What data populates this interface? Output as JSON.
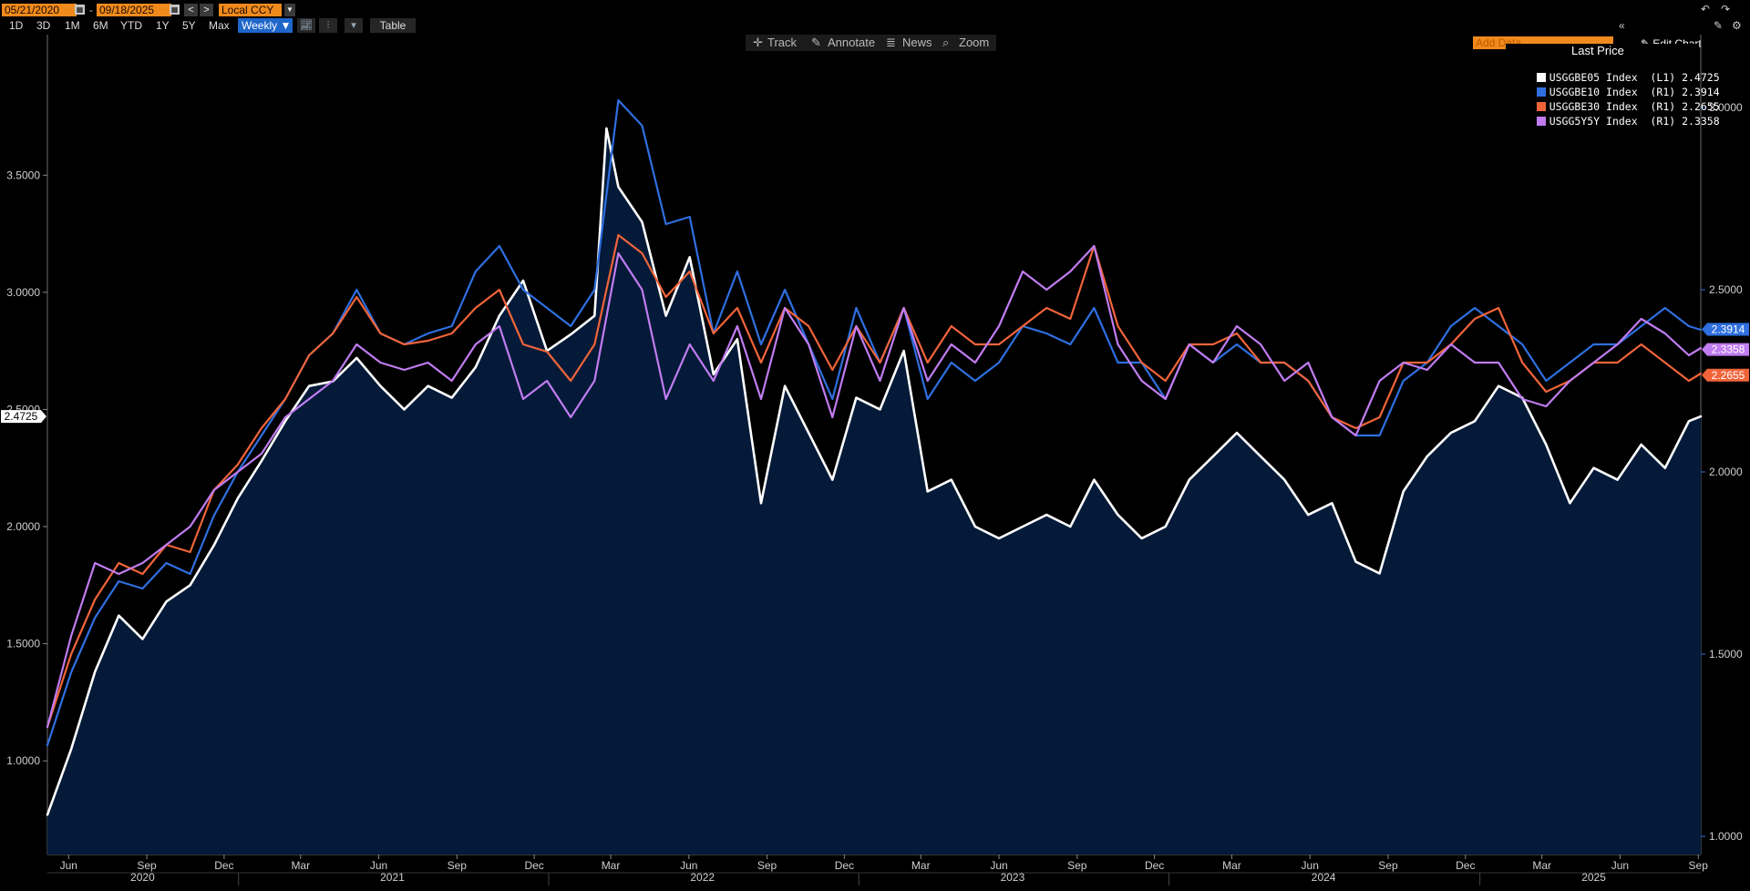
{
  "toolbar": {
    "start_date": "05/21/2020",
    "end_date": "09/18/2025",
    "date_separator": "-",
    "prev_label": "<",
    "next_label": ">",
    "currency": "Local CCY",
    "periods": [
      "1D",
      "3D",
      "1M",
      "6M",
      "YTD",
      "1Y",
      "5Y",
      "Max"
    ],
    "frequency": "Weekly ▼",
    "table_label": "Table",
    "add_data_placeholder": "Add Data",
    "collapse_label": "«",
    "edit_chart_label": "Edit Chart"
  },
  "chart_tools": {
    "track": "Track",
    "annotate": "Annotate",
    "news": "News",
    "zoom": "Zoom"
  },
  "legend": {
    "header": "Last Price",
    "items": [
      {
        "label": "USGGBE05 Index  (L1) 2.4725",
        "color": "#ffffff"
      },
      {
        "label": "USGGBE10 Index  (R1) 2.3914",
        "color": "#2f6fe0"
      },
      {
        "label": "USGGBE30 Index  (R1) 2.2655",
        "color": "#f0643a"
      },
      {
        "label": "USGG5Y5Y Index  (R1) 2.3358",
        "color": "#c07cf0"
      }
    ]
  },
  "chart_data": {
    "type": "line",
    "title": "",
    "xlabel": "",
    "ylabel": "",
    "x_range": [
      "2020-05-21",
      "2025-09-18"
    ],
    "x_month_ticks": [
      "Jun",
      "Sep",
      "Dec",
      "Mar",
      "Jun",
      "Sep",
      "Dec",
      "Mar",
      "Jun",
      "Sep",
      "Dec",
      "Mar",
      "Jun",
      "Sep",
      "Dec",
      "Mar",
      "Jun",
      "Sep",
      "Dec",
      "Mar",
      "Jun",
      "Sep"
    ],
    "x_month_tick_dates": [
      "2020-06-15",
      "2020-09-15",
      "2020-12-15",
      "2021-03-15",
      "2021-06-15",
      "2021-09-15",
      "2021-12-15",
      "2022-03-15",
      "2022-06-15",
      "2022-09-15",
      "2022-12-15",
      "2023-03-15",
      "2023-06-15",
      "2023-09-15",
      "2023-12-15",
      "2024-03-15",
      "2024-06-15",
      "2024-09-15",
      "2024-12-15",
      "2025-03-15",
      "2025-06-15",
      "2025-09-15"
    ],
    "x_year_labels": [
      "2020",
      "2021",
      "2022",
      "2023",
      "2024",
      "2025"
    ],
    "x_year_label_dates": [
      "2020-09-10",
      "2021-07-01",
      "2022-07-01",
      "2023-07-01",
      "2024-07-01",
      "2025-05-15"
    ],
    "left_axis": {
      "ticks": [
        "1.0000",
        "1.5000",
        "2.0000",
        "2.5000",
        "3.0000",
        "3.5000"
      ],
      "range": [
        0.6,
        4.1
      ],
      "last_value_label": "2.4725"
    },
    "right_axis": {
      "ticks": [
        "1.0000",
        "1.5000",
        "2.0000",
        "2.5000",
        "3.0000"
      ],
      "range": [
        0.95,
        3.2
      ],
      "last_value_labels": [
        "2.3914",
        "2.3358",
        "2.2655"
      ]
    },
    "series": [
      {
        "name": "USGGBE05 Index",
        "axis": "left",
        "color": "#ffffff",
        "filled": true,
        "fill_color": "#041a38",
        "x": [
          "2020-05-21",
          "2020-06-18",
          "2020-07-16",
          "2020-08-13",
          "2020-09-10",
          "2020-10-08",
          "2020-11-05",
          "2020-12-03",
          "2020-12-31",
          "2021-01-28",
          "2021-02-25",
          "2021-03-25",
          "2021-04-22",
          "2021-05-20",
          "2021-06-17",
          "2021-07-15",
          "2021-08-12",
          "2021-09-09",
          "2021-10-07",
          "2021-11-04",
          "2021-12-02",
          "2021-12-30",
          "2022-01-27",
          "2022-02-24",
          "2022-03-10",
          "2022-03-24",
          "2022-04-21",
          "2022-05-19",
          "2022-06-16",
          "2022-07-14",
          "2022-08-11",
          "2022-09-08",
          "2022-10-06",
          "2022-11-03",
          "2022-12-01",
          "2022-12-29",
          "2023-01-26",
          "2023-02-23",
          "2023-03-23",
          "2023-04-20",
          "2023-05-18",
          "2023-06-15",
          "2023-07-13",
          "2023-08-10",
          "2023-09-07",
          "2023-10-05",
          "2023-11-02",
          "2023-11-30",
          "2023-12-28",
          "2024-01-25",
          "2024-02-22",
          "2024-03-21",
          "2024-04-18",
          "2024-05-16",
          "2024-06-13",
          "2024-07-11",
          "2024-08-08",
          "2024-09-05",
          "2024-10-03",
          "2024-10-31",
          "2024-11-28",
          "2024-12-26",
          "2025-01-23",
          "2025-02-20",
          "2025-03-20",
          "2025-04-17",
          "2025-05-15",
          "2025-06-12",
          "2025-07-10",
          "2025-08-07",
          "2025-09-04",
          "2025-09-18"
        ],
        "values": [
          0.77,
          1.05,
          1.38,
          1.62,
          1.52,
          1.68,
          1.75,
          1.92,
          2.12,
          2.28,
          2.45,
          2.6,
          2.62,
          2.72,
          2.6,
          2.5,
          2.6,
          2.55,
          2.68,
          2.9,
          3.05,
          2.75,
          2.82,
          2.9,
          3.7,
          3.45,
          3.3,
          2.9,
          3.15,
          2.65,
          2.8,
          2.1,
          2.6,
          2.4,
          2.2,
          2.55,
          2.5,
          2.75,
          2.15,
          2.2,
          2.0,
          1.95,
          2.0,
          2.05,
          2.0,
          2.2,
          2.05,
          1.95,
          2.0,
          2.2,
          2.3,
          2.4,
          2.3,
          2.2,
          2.05,
          2.1,
          1.85,
          1.8,
          2.15,
          2.3,
          2.4,
          2.45,
          2.6,
          2.55,
          2.35,
          2.1,
          2.25,
          2.2,
          2.35,
          2.25,
          2.45,
          2.47
        ]
      },
      {
        "name": "USGGBE10 Index",
        "axis": "right",
        "color": "#2f6fe0",
        "x": [
          "2020-05-21",
          "2020-06-18",
          "2020-07-16",
          "2020-08-13",
          "2020-09-10",
          "2020-10-08",
          "2020-11-05",
          "2020-12-03",
          "2020-12-31",
          "2021-01-28",
          "2021-02-25",
          "2021-03-25",
          "2021-04-22",
          "2021-05-20",
          "2021-06-17",
          "2021-07-15",
          "2021-08-12",
          "2021-09-09",
          "2021-10-07",
          "2021-11-04",
          "2021-12-02",
          "2021-12-30",
          "2022-01-27",
          "2022-02-24",
          "2022-03-24",
          "2022-04-21",
          "2022-05-19",
          "2022-06-16",
          "2022-07-14",
          "2022-08-11",
          "2022-09-08",
          "2022-10-06",
          "2022-11-03",
          "2022-12-01",
          "2022-12-29",
          "2023-01-26",
          "2023-02-23",
          "2023-03-23",
          "2023-04-20",
          "2023-05-18",
          "2023-06-15",
          "2023-07-13",
          "2023-08-10",
          "2023-09-07",
          "2023-10-05",
          "2023-11-02",
          "2023-11-30",
          "2023-12-28",
          "2024-01-25",
          "2024-02-22",
          "2024-03-21",
          "2024-04-18",
          "2024-05-16",
          "2024-06-13",
          "2024-07-11",
          "2024-08-08",
          "2024-09-05",
          "2024-10-03",
          "2024-10-31",
          "2024-11-28",
          "2024-12-26",
          "2025-01-23",
          "2025-02-20",
          "2025-03-20",
          "2025-04-17",
          "2025-05-15",
          "2025-06-12",
          "2025-07-10",
          "2025-08-07",
          "2025-09-04",
          "2025-09-18"
        ],
        "values": [
          1.25,
          1.45,
          1.6,
          1.7,
          1.68,
          1.75,
          1.72,
          1.88,
          2.0,
          2.1,
          2.2,
          2.32,
          2.38,
          2.5,
          2.38,
          2.35,
          2.38,
          2.4,
          2.55,
          2.62,
          2.5,
          2.45,
          2.4,
          2.5,
          3.02,
          2.95,
          2.68,
          2.7,
          2.38,
          2.55,
          2.35,
          2.5,
          2.35,
          2.2,
          2.45,
          2.3,
          2.45,
          2.2,
          2.3,
          2.25,
          2.3,
          2.4,
          2.38,
          2.35,
          2.45,
          2.3,
          2.3,
          2.2,
          2.35,
          2.3,
          2.35,
          2.3,
          2.3,
          2.25,
          2.15,
          2.1,
          2.1,
          2.25,
          2.3,
          2.4,
          2.45,
          2.4,
          2.35,
          2.25,
          2.3,
          2.35,
          2.35,
          2.4,
          2.45,
          2.4,
          2.39
        ]
      },
      {
        "name": "USGGBE30 Index",
        "axis": "right",
        "color": "#f0643a",
        "x": [
          "2020-05-21",
          "2020-06-18",
          "2020-07-16",
          "2020-08-13",
          "2020-09-10",
          "2020-10-08",
          "2020-11-05",
          "2020-12-03",
          "2020-12-31",
          "2021-01-28",
          "2021-02-25",
          "2021-03-25",
          "2021-04-22",
          "2021-05-20",
          "2021-06-17",
          "2021-07-15",
          "2021-08-12",
          "2021-09-09",
          "2021-10-07",
          "2021-11-04",
          "2021-12-02",
          "2021-12-30",
          "2022-01-27",
          "2022-02-24",
          "2022-03-24",
          "2022-04-21",
          "2022-05-19",
          "2022-06-16",
          "2022-07-14",
          "2022-08-11",
          "2022-09-08",
          "2022-10-06",
          "2022-11-03",
          "2022-12-01",
          "2022-12-29",
          "2023-01-26",
          "2023-02-23",
          "2023-03-23",
          "2023-04-20",
          "2023-05-18",
          "2023-06-15",
          "2023-07-13",
          "2023-08-10",
          "2023-09-07",
          "2023-10-05",
          "2023-11-02",
          "2023-11-30",
          "2023-12-28",
          "2024-01-25",
          "2024-02-22",
          "2024-03-21",
          "2024-04-18",
          "2024-05-16",
          "2024-06-13",
          "2024-07-11",
          "2024-08-08",
          "2024-09-05",
          "2024-10-03",
          "2024-10-31",
          "2024-11-28",
          "2024-12-26",
          "2025-01-23",
          "2025-02-20",
          "2025-03-20",
          "2025-04-17",
          "2025-05-15",
          "2025-06-12",
          "2025-07-10",
          "2025-08-07",
          "2025-09-04",
          "2025-09-18"
        ],
        "values": [
          1.3,
          1.5,
          1.65,
          1.75,
          1.72,
          1.8,
          1.78,
          1.95,
          2.02,
          2.12,
          2.2,
          2.32,
          2.38,
          2.48,
          2.38,
          2.35,
          2.36,
          2.38,
          2.45,
          2.5,
          2.35,
          2.33,
          2.25,
          2.35,
          2.65,
          2.6,
          2.48,
          2.55,
          2.38,
          2.45,
          2.3,
          2.45,
          2.4,
          2.28,
          2.4,
          2.3,
          2.45,
          2.3,
          2.4,
          2.35,
          2.35,
          2.4,
          2.45,
          2.42,
          2.62,
          2.4,
          2.3,
          2.25,
          2.35,
          2.35,
          2.38,
          2.3,
          2.3,
          2.25,
          2.15,
          2.12,
          2.15,
          2.3,
          2.3,
          2.35,
          2.42,
          2.45,
          2.3,
          2.22,
          2.25,
          2.3,
          2.3,
          2.35,
          2.3,
          2.25,
          2.27
        ]
      },
      {
        "name": "USGG5Y5Y Index",
        "axis": "right",
        "color": "#c07cf0",
        "x": [
          "2020-05-21",
          "2020-06-18",
          "2020-07-16",
          "2020-08-13",
          "2020-09-10",
          "2020-10-08",
          "2020-11-05",
          "2020-12-03",
          "2020-12-31",
          "2021-01-28",
          "2021-02-25",
          "2021-03-25",
          "2021-04-22",
          "2021-05-20",
          "2021-06-17",
          "2021-07-15",
          "2021-08-12",
          "2021-09-09",
          "2021-10-07",
          "2021-11-04",
          "2021-12-02",
          "2021-12-30",
          "2022-01-27",
          "2022-02-24",
          "2022-03-24",
          "2022-04-21",
          "2022-05-19",
          "2022-06-16",
          "2022-07-14",
          "2022-08-11",
          "2022-09-08",
          "2022-10-06",
          "2022-11-03",
          "2022-12-01",
          "2022-12-29",
          "2023-01-26",
          "2023-02-23",
          "2023-03-23",
          "2023-04-20",
          "2023-05-18",
          "2023-06-15",
          "2023-07-13",
          "2023-08-10",
          "2023-09-07",
          "2023-10-05",
          "2023-11-02",
          "2023-11-30",
          "2023-12-28",
          "2024-01-25",
          "2024-02-22",
          "2024-03-21",
          "2024-04-18",
          "2024-05-16",
          "2024-06-13",
          "2024-07-11",
          "2024-08-08",
          "2024-09-05",
          "2024-10-03",
          "2024-10-31",
          "2024-11-28",
          "2024-12-26",
          "2025-01-23",
          "2025-02-20",
          "2025-03-20",
          "2025-04-17",
          "2025-05-15",
          "2025-06-12",
          "2025-07-10",
          "2025-08-07",
          "2025-09-04",
          "2025-09-18"
        ],
        "values": [
          1.3,
          1.55,
          1.75,
          1.72,
          1.75,
          1.8,
          1.85,
          1.95,
          2.0,
          2.05,
          2.15,
          2.2,
          2.25,
          2.35,
          2.3,
          2.28,
          2.3,
          2.25,
          2.35,
          2.4,
          2.2,
          2.25,
          2.15,
          2.25,
          2.6,
          2.5,
          2.2,
          2.35,
          2.25,
          2.4,
          2.2,
          2.45,
          2.35,
          2.15,
          2.4,
          2.25,
          2.45,
          2.25,
          2.35,
          2.3,
          2.4,
          2.55,
          2.5,
          2.55,
          2.62,
          2.35,
          2.25,
          2.2,
          2.35,
          2.3,
          2.4,
          2.35,
          2.25,
          2.3,
          2.15,
          2.1,
          2.25,
          2.3,
          2.28,
          2.35,
          2.3,
          2.3,
          2.2,
          2.18,
          2.25,
          2.3,
          2.35,
          2.42,
          2.38,
          2.32,
          2.34
        ]
      }
    ]
  }
}
